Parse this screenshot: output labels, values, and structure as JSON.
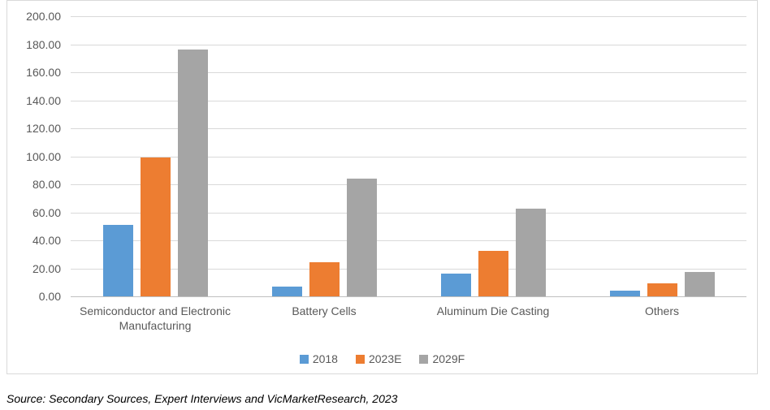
{
  "chart_data": {
    "type": "bar",
    "title": "",
    "categories": [
      "Semiconductor and Electronic Manufacturing",
      "Battery Cells",
      "Aluminum Die Casting",
      "Others"
    ],
    "series": [
      {
        "name": "2018",
        "color": "#5B9BD5",
        "values": [
          51,
          7,
          16.5,
          4
        ]
      },
      {
        "name": "2023E",
        "color": "#ED7D31",
        "values": [
          99,
          24.5,
          32.5,
          9
        ]
      },
      {
        "name": "2029F",
        "color": "#A5A5A5",
        "values": [
          176,
          84,
          62.5,
          17.5
        ]
      }
    ],
    "ylim": [
      0,
      200
    ],
    "ytick_step": 20,
    "ytick_format": "two_decimals",
    "xlabel": "",
    "ylabel": "",
    "grid": "horizontal",
    "legend_position": "bottom-center"
  },
  "colors": {
    "gridline": "#d9d9d9",
    "axis_line": "#bfbfbf",
    "tick_text": "#595959",
    "frame_border": "#d9d9d9"
  },
  "source": {
    "text": "Source: Secondary Sources, Expert Interviews and VicMarketResearch, 2023"
  }
}
